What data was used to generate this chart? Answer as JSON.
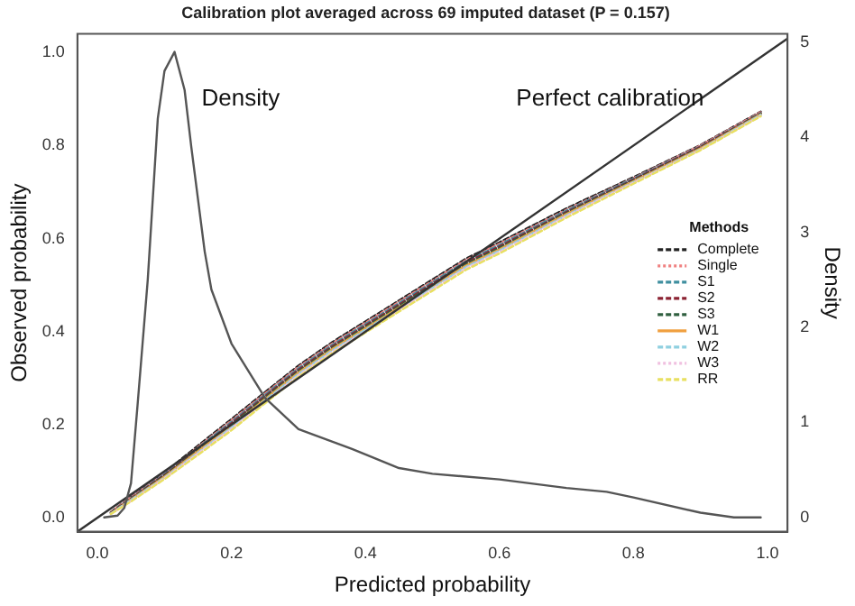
{
  "chart_data": {
    "type": "line",
    "title": "Calibration plot averaged across 69 imputed dataset (P = 0.157)",
    "xlabel": "Predicted probability",
    "ylabel": "Observed probability",
    "y2label": "Density",
    "legend_title": "Methods",
    "x": [
      0.02,
      0.05,
      0.1,
      0.15,
      0.2,
      0.25,
      0.3,
      0.35,
      0.4,
      0.45,
      0.5,
      0.55,
      0.6,
      0.7,
      0.8,
      0.9,
      0.99
    ],
    "series": [
      {
        "name": "Complete",
        "color": "#222222",
        "line_style": "dashed",
        "values": [
          0.012,
          0.045,
          0.097,
          0.155,
          0.212,
          0.27,
          0.327,
          0.377,
          0.422,
          0.467,
          0.512,
          0.557,
          0.592,
          0.665,
          0.732,
          0.801,
          0.873
        ]
      },
      {
        "name": "Single",
        "color": "#f08080",
        "line_style": "dotted",
        "values": [
          0.012,
          0.044,
          0.095,
          0.152,
          0.209,
          0.267,
          0.324,
          0.374,
          0.419,
          0.464,
          0.509,
          0.554,
          0.589,
          0.662,
          0.73,
          0.8,
          0.872
        ]
      },
      {
        "name": "S1",
        "color": "#3f8f9f",
        "line_style": "dashed",
        "values": [
          0.011,
          0.042,
          0.094,
          0.15,
          0.206,
          0.264,
          0.321,
          0.371,
          0.416,
          0.461,
          0.506,
          0.551,
          0.586,
          0.66,
          0.729,
          0.798,
          0.87
        ]
      },
      {
        "name": "S2",
        "color": "#8b2232",
        "line_style": "dashed",
        "values": [
          0.011,
          0.041,
          0.092,
          0.147,
          0.203,
          0.261,
          0.318,
          0.368,
          0.413,
          0.458,
          0.503,
          0.548,
          0.583,
          0.657,
          0.727,
          0.797,
          0.869
        ]
      },
      {
        "name": "S3",
        "color": "#2f5f3f",
        "line_style": "dashed",
        "values": [
          0.01,
          0.04,
          0.09,
          0.145,
          0.2,
          0.258,
          0.315,
          0.365,
          0.41,
          0.455,
          0.5,
          0.545,
          0.58,
          0.655,
          0.725,
          0.795,
          0.868
        ]
      },
      {
        "name": "W1",
        "color": "#f0a040",
        "line_style": "solid",
        "values": [
          0.009,
          0.039,
          0.088,
          0.143,
          0.197,
          0.255,
          0.312,
          0.362,
          0.407,
          0.452,
          0.497,
          0.542,
          0.577,
          0.653,
          0.723,
          0.794,
          0.867
        ]
      },
      {
        "name": "W2",
        "color": "#8fd0e0",
        "line_style": "dashed",
        "values": [
          0.009,
          0.038,
          0.086,
          0.14,
          0.194,
          0.252,
          0.309,
          0.359,
          0.404,
          0.449,
          0.494,
          0.539,
          0.574,
          0.65,
          0.721,
          0.792,
          0.866
        ]
      },
      {
        "name": "W3",
        "color": "#f0c0e0",
        "line_style": "dotted",
        "values": [
          0.008,
          0.036,
          0.085,
          0.138,
          0.191,
          0.249,
          0.306,
          0.356,
          0.401,
          0.446,
          0.491,
          0.536,
          0.571,
          0.648,
          0.72,
          0.791,
          0.864
        ]
      },
      {
        "name": "RR",
        "color": "#e8e060",
        "line_style": "dashed",
        "values": [
          0.008,
          0.035,
          0.083,
          0.135,
          0.188,
          0.246,
          0.303,
          0.353,
          0.398,
          0.443,
          0.488,
          0.533,
          0.568,
          0.645,
          0.718,
          0.79,
          0.863
        ]
      },
      {
        "color": "#333333",
        "line_style": "solid",
        "x": [
          -0.03,
          1.03
        ],
        "values": [
          -0.03,
          1.03
        ]
      },
      {
        "color": "#555555",
        "line_style": "solid",
        "axis": "y2",
        "x": [
          0.01,
          0.03,
          0.04,
          0.05,
          0.06,
          0.075,
          0.09,
          0.1,
          0.115,
          0.13,
          0.14,
          0.16,
          0.17,
          0.2,
          0.25,
          0.3,
          0.35,
          0.38,
          0.45,
          0.5,
          0.6,
          0.7,
          0.76,
          0.8,
          0.9,
          0.95,
          0.99
        ],
        "values": [
          0,
          0.02,
          0.1,
          0.36,
          1.2,
          2.5,
          4.2,
          4.7,
          4.9,
          4.5,
          3.9,
          2.8,
          2.4,
          1.83,
          1.26,
          0.93,
          0.8,
          0.72,
          0.52,
          0.46,
          0.4,
          0.31,
          0.27,
          0.21,
          0.05,
          0.0,
          0.0
        ]
      }
    ],
    "annotations": [
      "Density",
      "Perfect calibration"
    ],
    "xlim": [
      -0.03,
      1.03
    ],
    "ylim": [
      -0.03,
      1.04
    ],
    "y2lim": [
      -0.15,
      5.09
    ],
    "xticks": [
      {
        "value": 0,
        "label": "0.0"
      },
      {
        "value": 0.2,
        "label": "0.2"
      },
      {
        "value": 0.4,
        "label": "0.4"
      },
      {
        "value": 0.6,
        "label": "0.6"
      },
      {
        "value": 0.8,
        "label": "0.8"
      },
      {
        "value": 1,
        "label": "1.0"
      }
    ],
    "yticks": [
      {
        "value": 0,
        "label": "0.0"
      },
      {
        "value": 0.2,
        "label": "0.2"
      },
      {
        "value": 0.4,
        "label": "0.4"
      },
      {
        "value": 0.6,
        "label": "0.6"
      },
      {
        "value": 0.8,
        "label": "0.8"
      },
      {
        "value": 1,
        "label": "1.0"
      }
    ],
    "y2ticks": [
      0,
      1,
      2,
      3,
      4,
      5
    ],
    "grid": false,
    "legend": "right",
    "marker": "none"
  }
}
